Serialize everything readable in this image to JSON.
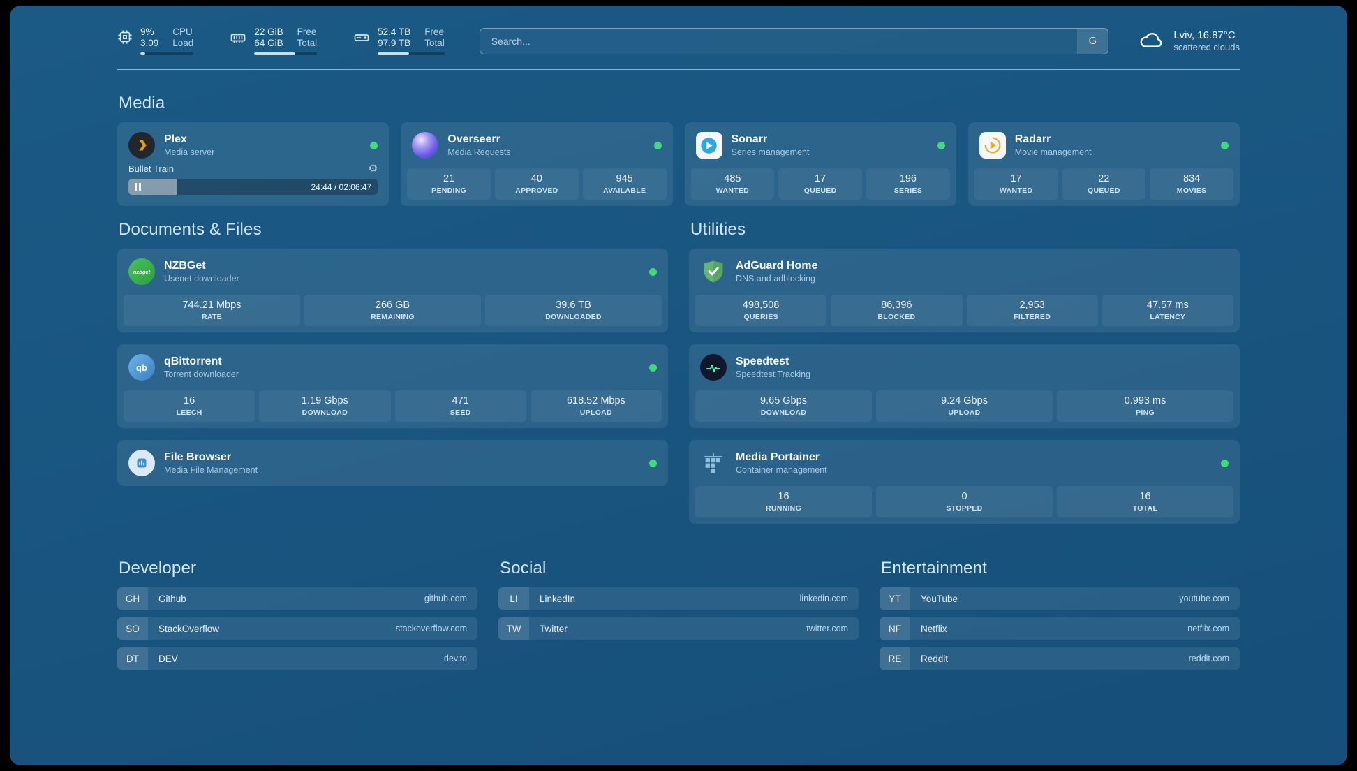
{
  "icons": {
    "gear": "⚙"
  },
  "colors": {
    "background": "#175379",
    "card": "rgba(255,255,255,0.085)",
    "status_online": "#44d97c",
    "heading_text": "#cfe7f9"
  },
  "topbar": {
    "resources": [
      {
        "name": "cpu",
        "value1": "9%",
        "value2": "3.09",
        "label1": "CPU",
        "label2": "Load",
        "progress": 9
      },
      {
        "name": "memory",
        "value1": "22 GiB",
        "value2": "64 GiB",
        "label1": "Free",
        "label2": "Total",
        "progress": 65
      },
      {
        "name": "disk",
        "value1": "52.4 TB",
        "value2": "97.9 TB",
        "label1": "Free",
        "label2": "Total",
        "progress": 47
      }
    ],
    "search": {
      "placeholder": "Search...",
      "provider_button": "G"
    },
    "weather": {
      "location": "Lviv, 16.87°C",
      "condition": "scattered clouds"
    }
  },
  "sections": {
    "media": "Media",
    "documents": "Documents & Files",
    "utilities": "Utilities"
  },
  "services": {
    "plex": {
      "name": "Plex",
      "desc": "Media server",
      "now_playing": "Bullet Train",
      "time": "24:44 / 02:06:47",
      "progress_pct": 19.5
    },
    "overseerr": {
      "name": "Overseerr",
      "desc": "Media Requests",
      "stats": [
        {
          "value": "21",
          "label": "PENDING"
        },
        {
          "value": "40",
          "label": "APPROVED"
        },
        {
          "value": "945",
          "label": "AVAILABLE"
        }
      ]
    },
    "sonarr": {
      "name": "Sonarr",
      "desc": "Series management",
      "stats": [
        {
          "value": "485",
          "label": "WANTED"
        },
        {
          "value": "17",
          "label": "QUEUED"
        },
        {
          "value": "196",
          "label": "SERIES"
        }
      ]
    },
    "radarr": {
      "name": "Radarr",
      "desc": "Movie management",
      "stats": [
        {
          "value": "17",
          "label": "WANTED"
        },
        {
          "value": "22",
          "label": "QUEUED"
        },
        {
          "value": "834",
          "label": "MOVIES"
        }
      ]
    },
    "nzbget": {
      "name": "NZBGet",
      "desc": "Usenet downloader",
      "icon_text": "nzbget",
      "stats": [
        {
          "value": "744.21 Mbps",
          "label": "RATE"
        },
        {
          "value": "266 GB",
          "label": "REMAINING"
        },
        {
          "value": "39.6 TB",
          "label": "DOWNLOADED"
        }
      ]
    },
    "qbittorrent": {
      "name": "qBittorrent",
      "desc": "Torrent downloader",
      "icon_text": "qb",
      "stats": [
        {
          "value": "16",
          "label": "LEECH"
        },
        {
          "value": "1.19 Gbps",
          "label": "DOWNLOAD"
        },
        {
          "value": "471",
          "label": "SEED"
        },
        {
          "value": "618.52 Mbps",
          "label": "UPLOAD"
        }
      ]
    },
    "filebrowser": {
      "name": "File Browser",
      "desc": "Media File Management"
    },
    "adguard": {
      "name": "AdGuard Home",
      "desc": "DNS and adblocking",
      "stats": [
        {
          "value": "498,508",
          "label": "QUERIES"
        },
        {
          "value": "86,396",
          "label": "BLOCKED"
        },
        {
          "value": "2,953",
          "label": "FILTERED"
        },
        {
          "value": "47.57 ms",
          "label": "LATENCY"
        }
      ]
    },
    "speedtest": {
      "name": "Speedtest",
      "desc": "Speedtest Tracking",
      "stats": [
        {
          "value": "9.65 Gbps",
          "label": "DOWNLOAD"
        },
        {
          "value": "9.24 Gbps",
          "label": "UPLOAD"
        },
        {
          "value": "0.993 ms",
          "label": "PING"
        }
      ]
    },
    "portainer": {
      "name": "Media Portainer",
      "desc": "Container management",
      "stats": [
        {
          "value": "16",
          "label": "RUNNING"
        },
        {
          "value": "0",
          "label": "STOPPED"
        },
        {
          "value": "16",
          "label": "TOTAL"
        }
      ]
    }
  },
  "bookmarks": {
    "developer": {
      "title": "Developer",
      "items": [
        {
          "abbr": "GH",
          "name": "Github",
          "domain": "github.com"
        },
        {
          "abbr": "SO",
          "name": "StackOverflow",
          "domain": "stackoverflow.com"
        },
        {
          "abbr": "DT",
          "name": "DEV",
          "domain": "dev.to"
        }
      ]
    },
    "social": {
      "title": "Social",
      "items": [
        {
          "abbr": "LI",
          "name": "LinkedIn",
          "domain": "linkedin.com"
        },
        {
          "abbr": "TW",
          "name": "Twitter",
          "domain": "twitter.com"
        }
      ]
    },
    "entertainment": {
      "title": "Entertainment",
      "items": [
        {
          "abbr": "YT",
          "name": "YouTube",
          "domain": "youtube.com"
        },
        {
          "abbr": "NF",
          "name": "Netflix",
          "domain": "netflix.com"
        },
        {
          "abbr": "RE",
          "name": "Reddit",
          "domain": "reddit.com"
        }
      ]
    }
  }
}
